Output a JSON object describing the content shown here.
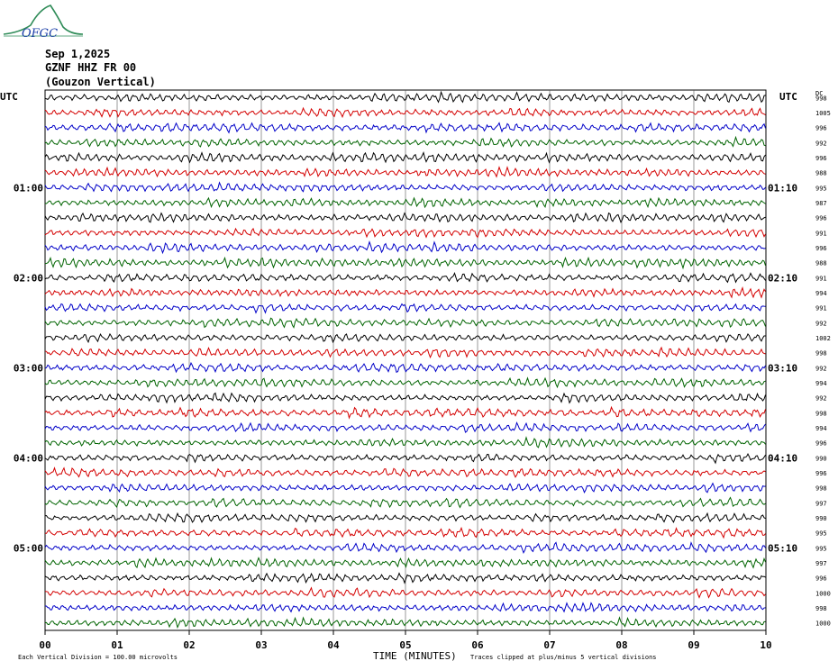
{
  "header": {
    "logo_text": "OFGC",
    "date": "Sep 1,2025",
    "station": "GZNF HHZ FR 00",
    "location": "(Gouzon Vertical)",
    "utc_left": "UTC",
    "utc_right": "UTC",
    "dc_label": "DC"
  },
  "footer": {
    "scale_note": "Each Vertical Division =  100.00 microvolts",
    "xlabel": "TIME (MINUTES)",
    "clip_note": "Traces clipped at plus/minus 5 vertical divisions"
  },
  "colors": [
    "#000000",
    "#d40000",
    "#0000c8",
    "#006400"
  ],
  "chart_data": {
    "type": "line",
    "title": "",
    "xlabel": "TIME (MINUTES)",
    "xlim": [
      0,
      10
    ],
    "x_ticks": [
      "00",
      "01",
      "02",
      "03",
      "04",
      "05",
      "06",
      "07",
      "08",
      "09",
      "10"
    ],
    "left_time_labels": [
      "01:00",
      "02:00",
      "03:00",
      "04:00",
      "05:00"
    ],
    "right_time_labels": [
      "01:10",
      "02:10",
      "03:10",
      "04:10",
      "05:10"
    ],
    "dc_offsets": [
      998,
      1005,
      996,
      992,
      996,
      988,
      995,
      987,
      996,
      991,
      996,
      988,
      991,
      994,
      991,
      992,
      1002,
      998,
      992,
      994,
      992,
      998,
      994,
      996,
      990,
      996,
      998,
      997,
      990,
      995,
      995,
      997,
      996,
      1000,
      998,
      1000
    ],
    "trace_count": 36,
    "grid": true
  }
}
